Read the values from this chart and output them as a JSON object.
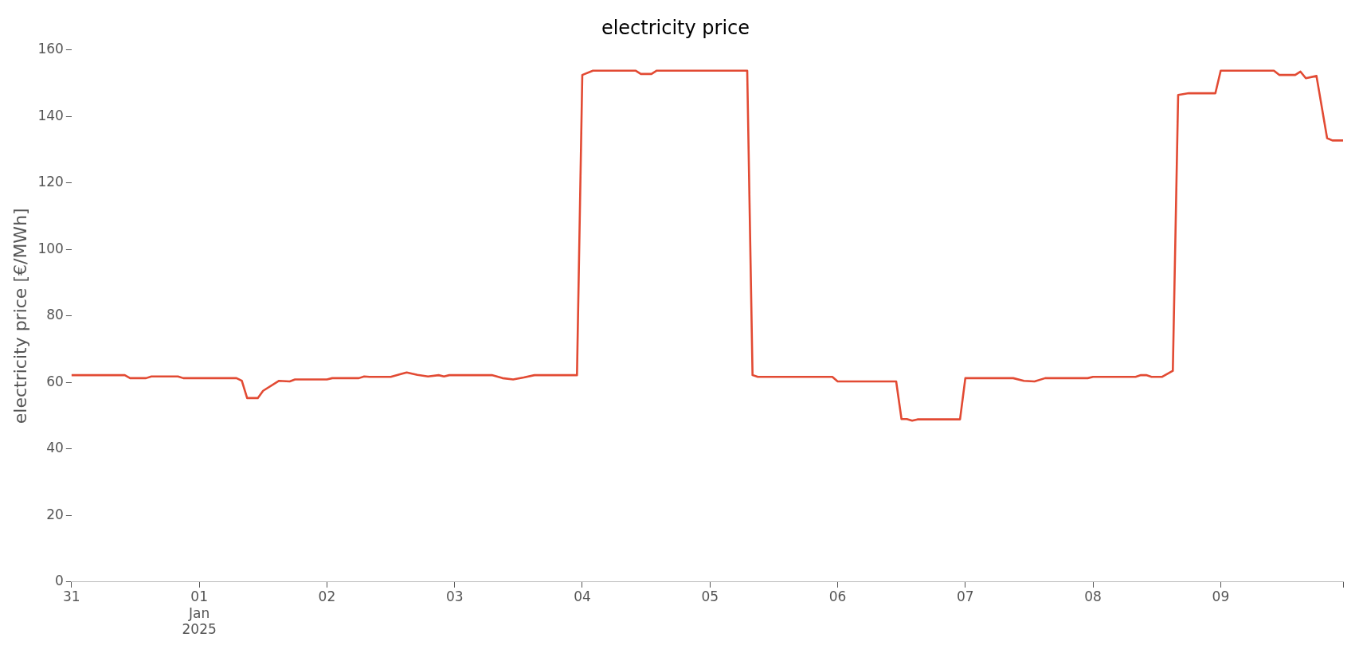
{
  "chart_data": {
    "type": "line",
    "title": "electricity price",
    "ylabel": "electricity price [€/MWh]",
    "x": [
      "2024-12-31T00:00",
      "2024-12-31T10:00",
      "2024-12-31T11:00",
      "2024-12-31T14:00",
      "2024-12-31T15:00",
      "2024-12-31T20:00",
      "2024-12-31T21:00",
      "2025-01-01T07:00",
      "2025-01-01T08:00",
      "2025-01-01T09:00",
      "2025-01-01T11:00",
      "2025-01-01T12:00",
      "2025-01-01T15:00",
      "2025-01-01T17:00",
      "2025-01-01T18:00",
      "2025-01-02T00:00",
      "2025-01-02T01:00",
      "2025-01-02T06:00",
      "2025-01-02T07:00",
      "2025-01-02T08:00",
      "2025-01-02T12:00",
      "2025-01-02T14:00",
      "2025-01-02T15:00",
      "2025-01-02T17:00",
      "2025-01-02T19:00",
      "2025-01-02T21:00",
      "2025-01-02T22:00",
      "2025-01-02T23:00",
      "2025-01-03T00:00",
      "2025-01-03T07:00",
      "2025-01-03T09:00",
      "2025-01-03T11:00",
      "2025-01-03T13:00",
      "2025-01-03T15:00",
      "2025-01-03T23:00",
      "2025-01-04T00:00",
      "2025-01-04T02:00",
      "2025-01-04T10:00",
      "2025-01-04T11:00",
      "2025-01-04T13:00",
      "2025-01-04T14:00",
      "2025-01-05T07:00",
      "2025-01-05T08:00",
      "2025-01-05T09:00",
      "2025-01-05T23:00",
      "2025-01-06T00:00",
      "2025-01-06T11:00",
      "2025-01-06T12:00",
      "2025-01-06T13:00",
      "2025-01-06T14:00",
      "2025-01-06T15:00",
      "2025-01-06T23:00",
      "2025-01-07T00:00",
      "2025-01-07T09:00",
      "2025-01-07T11:00",
      "2025-01-07T13:00",
      "2025-01-07T15:00",
      "2025-01-07T23:00",
      "2025-01-08T00:00",
      "2025-01-08T08:00",
      "2025-01-08T09:00",
      "2025-01-08T10:00",
      "2025-01-08T11:00",
      "2025-01-08T13:00",
      "2025-01-08T15:00",
      "2025-01-08T16:00",
      "2025-01-08T18:00",
      "2025-01-08T23:00",
      "2025-01-09T00:00",
      "2025-01-09T10:00",
      "2025-01-09T11:00",
      "2025-01-09T14:00",
      "2025-01-09T15:00",
      "2025-01-09T16:00",
      "2025-01-09T18:00",
      "2025-01-09T20:00",
      "2025-01-09T21:00",
      "2025-01-09T23:00"
    ],
    "series": [
      {
        "color": "#e24a33",
        "values": [
          62.2,
          62.2,
          61.3,
          61.3,
          61.8,
          61.8,
          61.3,
          61.3,
          60.5,
          55.3,
          55.3,
          57.5,
          60.5,
          60.3,
          60.9,
          60.9,
          61.3,
          61.3,
          61.8,
          61.7,
          61.7,
          62.6,
          63,
          62.3,
          61.8,
          62.2,
          61.8,
          62.2,
          62.2,
          62.2,
          61.3,
          60.9,
          61.5,
          62.2,
          62.2,
          152.5,
          153.8,
          153.8,
          152.8,
          152.8,
          153.8,
          153.8,
          62.2,
          61.7,
          61.7,
          60.3,
          60.3,
          49,
          49,
          48.5,
          48.9,
          48.9,
          61.3,
          61.3,
          60.5,
          60.3,
          61.3,
          61.3,
          61.7,
          61.7,
          62.2,
          62.2,
          61.7,
          61.7,
          63.5,
          146.5,
          147,
          147,
          153.8,
          153.8,
          152.5,
          152.5,
          153.5,
          151.5,
          152.2,
          133.5,
          132.8,
          132.8
        ]
      }
    ],
    "xlim": [
      "2024-12-31T00:00",
      "2025-01-09T23:00"
    ],
    "xticks": [
      {
        "value": "2024-12-31",
        "label": "31"
      },
      {
        "value": "2025-01-01",
        "label": "01\nJan\n2025"
      },
      {
        "value": "2025-01-02",
        "label": "02"
      },
      {
        "value": "2025-01-03",
        "label": "03"
      },
      {
        "value": "2025-01-04",
        "label": "04"
      },
      {
        "value": "2025-01-05",
        "label": "05"
      },
      {
        "value": "2025-01-06",
        "label": "06"
      },
      {
        "value": "2025-01-07",
        "label": "07"
      },
      {
        "value": "2025-01-08",
        "label": "08"
      },
      {
        "value": "2025-01-09",
        "label": "09"
      },
      {
        "value": "2025-01-09T23:00",
        "label": null
      }
    ],
    "ylim": [
      0,
      160
    ],
    "yticks": [
      0,
      20,
      40,
      60,
      80,
      100,
      120,
      140,
      160
    ],
    "grid": false,
    "legend": false,
    "marker": "none",
    "line_style": "solid"
  }
}
